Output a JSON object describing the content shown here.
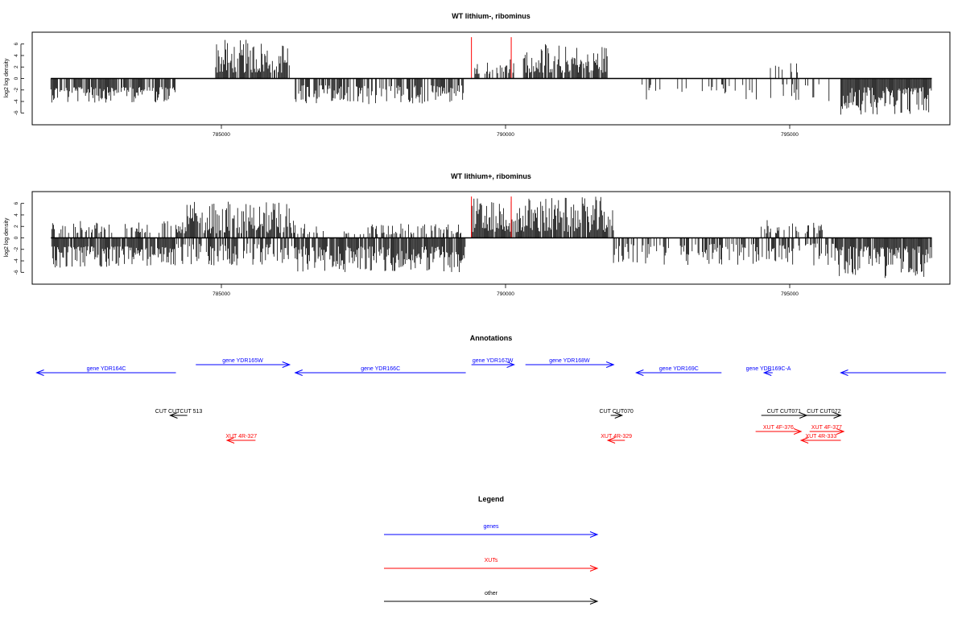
{
  "panels": [
    {
      "title": "WT lithium-, ribominus",
      "ylabel": "log2 log density",
      "yticks": [
        -6,
        -4,
        -2,
        0,
        2,
        4,
        6
      ],
      "xticks": [
        "785000",
        "790000",
        "795000"
      ],
      "profile": "minus"
    },
    {
      "title": "WT lithium+, ribominus",
      "ylabel": "log2 log density",
      "yticks": [
        -6,
        -4,
        -2,
        0,
        2,
        4,
        6
      ],
      "xticks": [
        "785000",
        "790000",
        "795000"
      ],
      "profile": "plus"
    }
  ],
  "annotations_title": "Annotations",
  "legend_title": "Legend",
  "colors": {
    "genes": "#0000ff",
    "xuts": "#ff0000",
    "other": "#000000",
    "highlight": "#ff0000",
    "axis": "#000000"
  },
  "chart_data": [
    {
      "type": "bar",
      "title": "WT lithium-, ribominus",
      "ylabel": "log2 log density",
      "xlim": [
        781700,
        797700
      ],
      "ylim": [
        -7.5,
        7.5
      ],
      "grid": false,
      "series": [
        {
          "region": [
            782000,
            784200
          ],
          "sign": -1,
          "min": 1.5,
          "max": 4.2,
          "density": 0.8
        },
        {
          "region": [
            784900,
            786200
          ],
          "sign": 1,
          "min": 1.0,
          "max": 6.8,
          "density": 0.85
        },
        {
          "region": [
            786300,
            789300
          ],
          "sign": -1,
          "min": 1.2,
          "max": 4.5,
          "density": 0.65
        },
        {
          "region": [
            789400,
            790150
          ],
          "sign": 1,
          "min": 0.8,
          "max": 3.6,
          "density": 0.4
        },
        {
          "region": [
            790300,
            791800
          ],
          "sign": 1,
          "min": 1.0,
          "max": 6.0,
          "density": 0.85
        },
        {
          "region": [
            792300,
            795800
          ],
          "sign": -1,
          "min": 1.0,
          "max": 4.0,
          "density": 0.15
        },
        {
          "region": [
            794600,
            795200
          ],
          "sign": 1,
          "min": 1.0,
          "max": 3.2,
          "density": 0.15
        },
        {
          "region": [
            795900,
            797500
          ],
          "sign": -1,
          "min": 1.5,
          "max": 6.3,
          "density": 0.95
        }
      ],
      "highlights": [
        {
          "x": 789400,
          "value": 7.2
        },
        {
          "x": 790100,
          "value": 7.2
        }
      ]
    },
    {
      "type": "bar",
      "title": "WT lithium+, ribominus",
      "ylabel": "log2 log density",
      "xlim": [
        781700,
        797700
      ],
      "ylim": [
        -7.5,
        7.5
      ],
      "grid": false,
      "series": [
        {
          "region": [
            782000,
            784200
          ],
          "sign": -1,
          "min": 1.5,
          "max": 5.2,
          "density": 0.9
        },
        {
          "region": [
            782000,
            784200
          ],
          "sign": 1,
          "min": 0.8,
          "max": 3.0,
          "density": 0.35
        },
        {
          "region": [
            784200,
            786300
          ],
          "sign": 1,
          "min": 0.8,
          "max": 6.3,
          "density": 0.8
        },
        {
          "region": [
            784200,
            786300
          ],
          "sign": -1,
          "min": 1.0,
          "max": 4.8,
          "density": 0.6
        },
        {
          "region": [
            786300,
            789300
          ],
          "sign": -1,
          "min": 1.5,
          "max": 6.0,
          "density": 0.9
        },
        {
          "region": [
            786300,
            789300
          ],
          "sign": 1,
          "min": 0.6,
          "max": 2.5,
          "density": 0.3
        },
        {
          "region": [
            789400,
            791900
          ],
          "sign": 1,
          "min": 1.0,
          "max": 7.2,
          "density": 0.95
        },
        {
          "region": [
            791900,
            795800
          ],
          "sign": -1,
          "min": 1.0,
          "max": 4.8,
          "density": 0.45
        },
        {
          "region": [
            794500,
            795600
          ],
          "sign": 1,
          "min": 0.8,
          "max": 3.2,
          "density": 0.5
        },
        {
          "region": [
            795800,
            797500
          ],
          "sign": -1,
          "min": 1.5,
          "max": 7.0,
          "density": 0.95
        }
      ],
      "highlights": [
        {
          "x": 789400,
          "value": 7.2
        },
        {
          "x": 790100,
          "value": 7.2
        }
      ]
    }
  ],
  "annotations": [
    {
      "label": "gene YDR164C",
      "kind": "gene",
      "strand": "-",
      "start": 781750,
      "end": 784200,
      "row": 1
    },
    {
      "label": "gene YDR165W",
      "kind": "gene",
      "strand": "+",
      "start": 784550,
      "end": 786200,
      "row": 0
    },
    {
      "label": "gene YDR166C",
      "kind": "gene",
      "strand": "-",
      "start": 786300,
      "end": 789300,
      "row": 1
    },
    {
      "label": "gene YDR167W",
      "kind": "gene",
      "strand": "+",
      "start": 789400,
      "end": 790150,
      "row": 0
    },
    {
      "label": "gene YDR168W",
      "kind": "gene",
      "strand": "+",
      "start": 790350,
      "end": 791900,
      "row": 0
    },
    {
      "label": "gene YDR169C",
      "kind": "gene",
      "strand": "-",
      "start": 792300,
      "end": 793800,
      "row": 1
    },
    {
      "label": "gene YDR169C-A",
      "kind": "gene",
      "strand": "-",
      "start": 794550,
      "end": 794700,
      "row": 1
    },
    {
      "label": "",
      "kind": "gene",
      "strand": "-",
      "start": 795900,
      "end": 797750,
      "row": 1
    },
    {
      "label": "CUT CUTCUT 513",
      "kind": "other",
      "strand": "-",
      "start": 784100,
      "end": 784400,
      "row": 2
    },
    {
      "label": "CUT CUT070",
      "kind": "other",
      "strand": "+",
      "start": 791850,
      "end": 792050,
      "row": 2
    },
    {
      "label": "CUT CUT071",
      "kind": "other",
      "strand": "+",
      "start": 794500,
      "end": 795300,
      "row": 2
    },
    {
      "label": "CUT CUT072",
      "kind": "other",
      "strand": "+",
      "start": 795300,
      "end": 795900,
      "row": 2
    },
    {
      "label": "XUT 4F-376",
      "kind": "xut",
      "strand": "+",
      "start": 794400,
      "end": 795200,
      "row": 3
    },
    {
      "label": "XUT 4F-377",
      "kind": "xut",
      "strand": "+",
      "start": 795350,
      "end": 795950,
      "row": 3
    },
    {
      "label": "XUT 4R-327",
      "kind": "xut",
      "strand": "-",
      "start": 785100,
      "end": 785600,
      "row": 4
    },
    {
      "label": "XUT 4R-329",
      "kind": "xut",
      "strand": "-",
      "start": 791800,
      "end": 792100,
      "row": 4
    },
    {
      "label": "XUT 4R-333",
      "kind": "xut",
      "strand": "-",
      "start": 795200,
      "end": 795900,
      "row": 4
    }
  ],
  "legend": [
    {
      "label": "genes",
      "kind": "gene"
    },
    {
      "label": "XUTs",
      "kind": "xut"
    },
    {
      "label": "other",
      "kind": "other"
    }
  ]
}
